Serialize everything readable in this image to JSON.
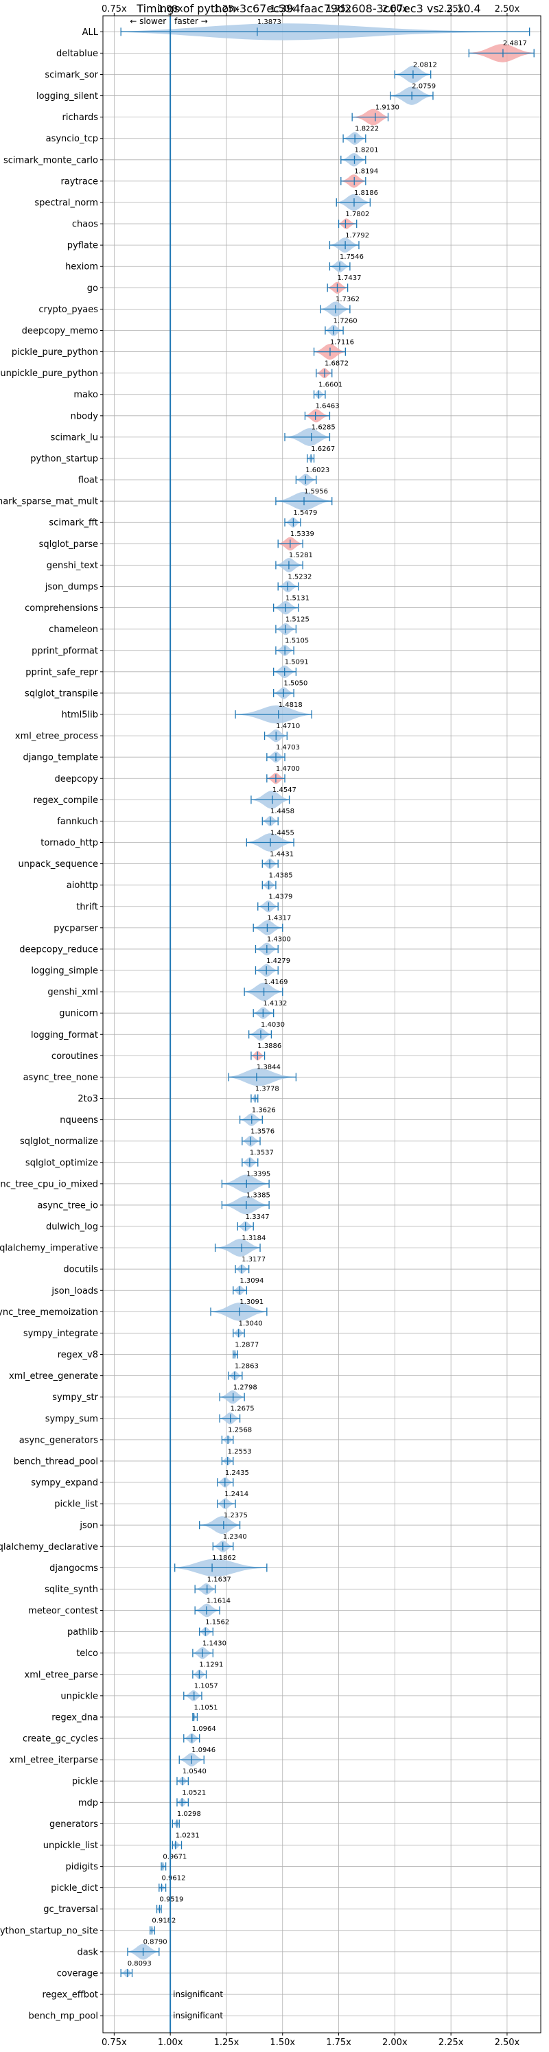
{
  "chart_data": {
    "type": "violin",
    "title": "Timings of python-3c67ec394faac79d2608-3c67ec3 vs. 3.10.4",
    "xlim": [
      0.7,
      2.65
    ],
    "xticks": [
      "0.75x",
      "1.00x",
      "1.25x",
      "1.50x",
      "1.75x",
      "2.00x",
      "2.25x",
      "2.50x"
    ],
    "xtick_values": [
      0.75,
      1.0,
      1.25,
      1.5,
      1.75,
      2.0,
      2.25,
      2.5
    ],
    "grid": true,
    "baseline": 1.0,
    "direction_labels": {
      "slower": "← slower",
      "faster": "faster →"
    },
    "insignificant_label": "insignificant",
    "colors": {
      "normal": "#aecbe8",
      "slower_highlight": "#f4a9a9",
      "line": "#1f77b4",
      "grid": "#b0b0b0"
    },
    "categories": [
      "ALL",
      "deltablue",
      "scimark_sor",
      "logging_silent",
      "richards",
      "asyncio_tcp",
      "scimark_monte_carlo",
      "raytrace",
      "spectral_norm",
      "chaos",
      "pyflate",
      "hexiom",
      "go",
      "crypto_pyaes",
      "deepcopy_memo",
      "pickle_pure_python",
      "unpickle_pure_python",
      "mako",
      "nbody",
      "scimark_lu",
      "python_startup",
      "float",
      "scimark_sparse_mat_mult",
      "scimark_fft",
      "sqlglot_parse",
      "genshi_text",
      "json_dumps",
      "comprehensions",
      "chameleon",
      "pprint_pformat",
      "pprint_safe_repr",
      "sqlglot_transpile",
      "html5lib",
      "xml_etree_process",
      "django_template",
      "deepcopy",
      "regex_compile",
      "fannkuch",
      "tornado_http",
      "unpack_sequence",
      "aiohttp",
      "thrift",
      "pycparser",
      "deepcopy_reduce",
      "logging_simple",
      "genshi_xml",
      "gunicorn",
      "logging_format",
      "coroutines",
      "async_tree_none",
      "2to3",
      "nqueens",
      "sqlglot_normalize",
      "sqlglot_optimize",
      "async_tree_cpu_io_mixed",
      "async_tree_io",
      "dulwich_log",
      "sqlalchemy_imperative",
      "docutils",
      "json_loads",
      "async_tree_memoization",
      "sympy_integrate",
      "regex_v8",
      "xml_etree_generate",
      "sympy_str",
      "sympy_sum",
      "async_generators",
      "bench_thread_pool",
      "sympy_expand",
      "pickle_list",
      "json",
      "sqlalchemy_declarative",
      "djangocms",
      "sqlite_synth",
      "meteor_contest",
      "pathlib",
      "telco",
      "xml_etree_parse",
      "unpickle",
      "regex_dna",
      "create_gc_cycles",
      "xml_etree_iterparse",
      "pickle",
      "mdp",
      "generators",
      "unpickle_list",
      "pidigits",
      "pickle_dict",
      "gc_traversal",
      "python_startup_no_site",
      "dask",
      "coverage",
      "regex_effbot",
      "bench_mp_pool"
    ],
    "values": [
      1.3873,
      2.4817,
      2.0812,
      2.0759,
      1.913,
      1.8222,
      1.8201,
      1.8194,
      1.8186,
      1.7802,
      1.7792,
      1.7546,
      1.7437,
      1.7362,
      1.726,
      1.7116,
      1.6872,
      1.6601,
      1.6463,
      1.6285,
      1.6267,
      1.6023,
      1.5956,
      1.5479,
      1.5339,
      1.5281,
      1.5232,
      1.5131,
      1.5125,
      1.5105,
      1.5091,
      1.505,
      1.4818,
      1.471,
      1.4703,
      1.47,
      1.4547,
      1.4458,
      1.4455,
      1.4431,
      1.4385,
      1.4379,
      1.4317,
      1.43,
      1.4279,
      1.4169,
      1.4132,
      1.403,
      1.3886,
      1.3844,
      1.3778,
      1.3626,
      1.3576,
      1.3537,
      1.3395,
      1.3385,
      1.3347,
      1.3184,
      1.3177,
      1.3094,
      1.3091,
      1.304,
      1.2877,
      1.2863,
      1.2798,
      1.2675,
      1.2568,
      1.2553,
      1.2435,
      1.2414,
      1.2375,
      1.234,
      1.1862,
      1.1637,
      1.1614,
      1.1562,
      1.143,
      1.1291,
      1.1057,
      1.1051,
      1.0964,
      1.0946,
      1.054,
      1.0521,
      1.0298,
      1.0231,
      0.9671,
      0.9612,
      0.9519,
      0.9182,
      0.879,
      0.8093,
      null,
      null
    ],
    "value_labels": [
      "1.3873",
      "2.4817",
      "2.0812",
      "2.0759",
      "1.9130",
      "1.8222",
      "1.8201",
      "1.8194",
      "1.8186",
      "1.7802",
      "1.7792",
      "1.7546",
      "1.7437",
      "1.7362",
      "1.7260",
      "1.7116",
      "1.6872",
      "1.6601",
      "1.6463",
      "1.6285",
      "1.6267",
      "1.6023",
      "1.5956",
      "1.5479",
      "1.5339",
      "1.5281",
      "1.5232",
      "1.5131",
      "1.5125",
      "1.5105",
      "1.5091",
      "1.5050",
      "1.4818",
      "1.4710",
      "1.4703",
      "1.4700",
      "1.4547",
      "1.4458",
      "1.4455",
      "1.4431",
      "1.4385",
      "1.4379",
      "1.4317",
      "1.4300",
      "1.4279",
      "1.4169",
      "1.4132",
      "1.4030",
      "1.3886",
      "1.3844",
      "1.3778",
      "1.3626",
      "1.3576",
      "1.3537",
      "1.3395",
      "1.3385",
      "1.3347",
      "1.3184",
      "1.3177",
      "1.3094",
      "1.3091",
      "1.3040",
      "1.2877",
      "1.2863",
      "1.2798",
      "1.2675",
      "1.2568",
      "1.2553",
      "1.2435",
      "1.2414",
      "1.2375",
      "1.2340",
      "1.1862",
      "1.1637",
      "1.1614",
      "1.1562",
      "1.1430",
      "1.1291",
      "1.1057",
      "1.1051",
      "1.0964",
      "1.0946",
      "1.0540",
      "1.0521",
      "1.0298",
      "1.0231",
      "0.9671",
      "0.9612",
      "0.9519",
      "0.9182",
      "0.8790",
      "0.8093",
      "insignificant",
      "insignificant"
    ],
    "ranges": [
      [
        0.78,
        2.6
      ],
      [
        2.33,
        2.62
      ],
      [
        2.0,
        2.16
      ],
      [
        1.98,
        2.17
      ],
      [
        1.81,
        1.97
      ],
      [
        1.77,
        1.87
      ],
      [
        1.76,
        1.87
      ],
      [
        1.76,
        1.87
      ],
      [
        1.74,
        1.89
      ],
      [
        1.75,
        1.83
      ],
      [
        1.71,
        1.84
      ],
      [
        1.71,
        1.8
      ],
      [
        1.7,
        1.79
      ],
      [
        1.67,
        1.8
      ],
      [
        1.69,
        1.77
      ],
      [
        1.64,
        1.78
      ],
      [
        1.65,
        1.72
      ],
      [
        1.64,
        1.69
      ],
      [
        1.6,
        1.71
      ],
      [
        1.51,
        1.71
      ],
      [
        1.61,
        1.64
      ],
      [
        1.56,
        1.65
      ],
      [
        1.47,
        1.72
      ],
      [
        1.51,
        1.58
      ],
      [
        1.48,
        1.59
      ],
      [
        1.47,
        1.59
      ],
      [
        1.48,
        1.57
      ],
      [
        1.46,
        1.57
      ],
      [
        1.47,
        1.56
      ],
      [
        1.47,
        1.55
      ],
      [
        1.46,
        1.56
      ],
      [
        1.46,
        1.55
      ],
      [
        1.29,
        1.63
      ],
      [
        1.42,
        1.52
      ],
      [
        1.43,
        1.51
      ],
      [
        1.43,
        1.51
      ],
      [
        1.36,
        1.53
      ],
      [
        1.41,
        1.48
      ],
      [
        1.34,
        1.55
      ],
      [
        1.41,
        1.48
      ],
      [
        1.41,
        1.47
      ],
      [
        1.39,
        1.48
      ],
      [
        1.37,
        1.5
      ],
      [
        1.38,
        1.48
      ],
      [
        1.38,
        1.48
      ],
      [
        1.33,
        1.5
      ],
      [
        1.37,
        1.46
      ],
      [
        1.35,
        1.45
      ],
      [
        1.36,
        1.42
      ],
      [
        1.26,
        1.56
      ],
      [
        1.36,
        1.39
      ],
      [
        1.31,
        1.41
      ],
      [
        1.32,
        1.4
      ],
      [
        1.32,
        1.39
      ],
      [
        1.23,
        1.44
      ],
      [
        1.23,
        1.44
      ],
      [
        1.3,
        1.37
      ],
      [
        1.2,
        1.4
      ],
      [
        1.29,
        1.35
      ],
      [
        1.28,
        1.34
      ],
      [
        1.18,
        1.43
      ],
      [
        1.28,
        1.33
      ],
      [
        1.28,
        1.3
      ],
      [
        1.26,
        1.32
      ],
      [
        1.22,
        1.33
      ],
      [
        1.22,
        1.31
      ],
      [
        1.23,
        1.28
      ],
      [
        1.23,
        1.28
      ],
      [
        1.21,
        1.28
      ],
      [
        1.21,
        1.29
      ],
      [
        1.13,
        1.31
      ],
      [
        1.19,
        1.28
      ],
      [
        1.02,
        1.43
      ],
      [
        1.11,
        1.2
      ],
      [
        1.11,
        1.22
      ],
      [
        1.13,
        1.19
      ],
      [
        1.1,
        1.19
      ],
      [
        1.1,
        1.16
      ],
      [
        1.06,
        1.14
      ],
      [
        1.1,
        1.12
      ],
      [
        1.06,
        1.13
      ],
      [
        1.04,
        1.15
      ],
      [
        1.03,
        1.08
      ],
      [
        1.03,
        1.08
      ],
      [
        1.01,
        1.04
      ],
      [
        1.01,
        1.05
      ],
      [
        0.96,
        0.98
      ],
      [
        0.95,
        0.98
      ],
      [
        0.94,
        0.96
      ],
      [
        0.91,
        0.93
      ],
      [
        0.81,
        0.95
      ],
      [
        0.78,
        0.83
      ],
      null,
      null
    ],
    "highlighted": [
      false,
      true,
      false,
      false,
      true,
      false,
      false,
      true,
      false,
      true,
      false,
      false,
      true,
      false,
      false,
      true,
      true,
      false,
      true,
      false,
      false,
      false,
      false,
      false,
      true,
      false,
      false,
      false,
      false,
      false,
      false,
      false,
      false,
      false,
      false,
      true,
      false,
      false,
      false,
      false,
      false,
      false,
      false,
      false,
      false,
      false,
      false,
      false,
      true,
      false,
      false,
      false,
      false,
      false,
      false,
      false,
      false,
      false,
      false,
      false,
      false,
      false,
      false,
      false,
      false,
      false,
      false,
      false,
      false,
      false,
      false,
      false,
      false,
      false,
      false,
      false,
      false,
      false,
      false,
      false,
      false,
      false,
      false,
      false,
      false,
      false,
      false,
      false,
      false,
      false,
      false,
      false,
      false,
      false
    ]
  }
}
